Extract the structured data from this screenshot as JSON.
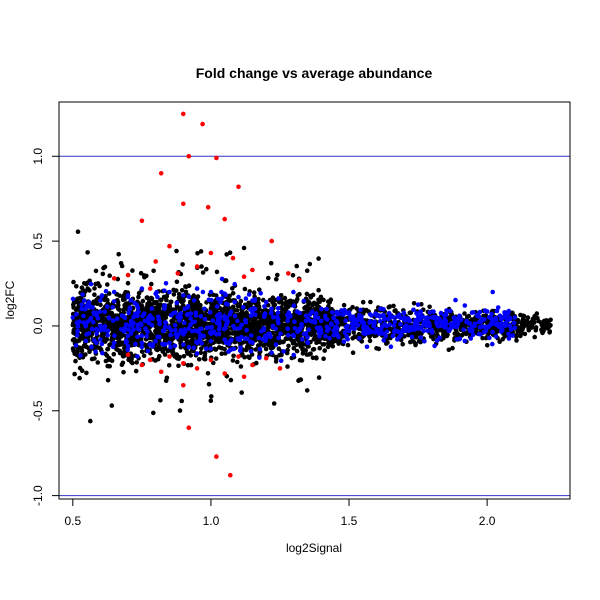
{
  "chart_data": {
    "type": "scatter",
    "title": "Fold change vs average abundance",
    "xlabel": "log2Signal",
    "ylabel": "log2FC",
    "xlim": [
      0.45,
      2.3
    ],
    "ylim": [
      -1.02,
      1.32
    ],
    "x_ticks": [
      0.5,
      1.0,
      1.5,
      2.0
    ],
    "x_tick_labels": [
      "0.5",
      "1.0",
      "1.5",
      "2.0"
    ],
    "y_ticks": [
      -1.0,
      -0.5,
      0.0,
      0.5,
      1.0
    ],
    "y_tick_labels": [
      "-1.0",
      "-0.5",
      "0.0",
      "0.5",
      "1.0"
    ],
    "grid": false,
    "reference_lines": [
      {
        "axis": "y",
        "value": 1.0,
        "color": "#3333cc"
      },
      {
        "axis": "y",
        "value": -1.0,
        "color": "#3333cc"
      }
    ],
    "colors": {
      "black": "#000000",
      "blue": "#0000ff",
      "red": "#ff0000"
    },
    "series": [
      {
        "color": "#ff0000",
        "points": [
          [
            0.9,
            1.25
          ],
          [
            0.97,
            1.19
          ],
          [
            0.92,
            1.0
          ],
          [
            1.02,
            0.99
          ],
          [
            0.82,
            0.9
          ],
          [
            1.1,
            0.82
          ],
          [
            0.9,
            0.72
          ],
          [
            0.99,
            0.7
          ],
          [
            1.05,
            0.63
          ],
          [
            0.75,
            0.62
          ],
          [
            1.22,
            0.5
          ],
          [
            0.85,
            0.47
          ],
          [
            1.0,
            0.43
          ],
          [
            1.08,
            0.4
          ],
          [
            0.8,
            0.38
          ],
          [
            0.95,
            0.35
          ],
          [
            1.15,
            0.33
          ],
          [
            1.28,
            0.31
          ],
          [
            0.7,
            0.3
          ],
          [
            0.88,
            0.31
          ],
          [
            0.78,
            0.22
          ],
          [
            1.12,
            0.29
          ],
          [
            0.65,
            0.28
          ],
          [
            1.32,
            0.27
          ],
          [
            0.7,
            -0.17
          ],
          [
            0.78,
            -0.2
          ],
          [
            0.85,
            -0.18
          ],
          [
            0.9,
            -0.22
          ],
          [
            0.95,
            -0.25
          ],
          [
            1.0,
            -0.2
          ],
          [
            1.05,
            -0.28
          ],
          [
            1.1,
            -0.18
          ],
          [
            1.15,
            -0.23
          ],
          [
            1.2,
            -0.19
          ],
          [
            0.82,
            -0.27
          ],
          [
            0.92,
            -0.6
          ],
          [
            1.02,
            -0.77
          ],
          [
            1.07,
            -0.88
          ],
          [
            0.9,
            -0.35
          ],
          [
            1.12,
            -0.3
          ],
          [
            1.25,
            -0.25
          ],
          [
            0.75,
            -0.23
          ]
        ]
      },
      {
        "color": "#0000ff",
        "points": [
          [
            0.5,
            0.05
          ],
          [
            0.55,
            0.12
          ],
          [
            0.6,
            0.15
          ],
          [
            0.65,
            0.2
          ],
          [
            0.7,
            0.18
          ],
          [
            0.75,
            0.22
          ],
          [
            0.8,
            0.19
          ],
          [
            0.85,
            0.2
          ],
          [
            0.9,
            0.18
          ],
          [
            0.95,
            0.22
          ],
          [
            1.0,
            0.2
          ],
          [
            1.05,
            0.19
          ],
          [
            1.1,
            0.17
          ],
          [
            1.15,
            0.15
          ],
          [
            1.2,
            0.14
          ],
          [
            1.3,
            0.12
          ],
          [
            1.4,
            0.1
          ],
          [
            1.5,
            0.08
          ],
          [
            1.6,
            0.06
          ],
          [
            1.7,
            0.05
          ],
          [
            1.8,
            0.05
          ],
          [
            1.9,
            0.06
          ],
          [
            1.95,
            0.08
          ],
          [
            2.02,
            0.2
          ],
          [
            2.1,
            0.05
          ],
          [
            0.55,
            -0.05
          ],
          [
            0.6,
            -0.08
          ],
          [
            0.65,
            -0.1
          ],
          [
            0.7,
            -0.12
          ],
          [
            0.75,
            -0.1
          ],
          [
            0.8,
            -0.09
          ],
          [
            0.85,
            -0.1
          ],
          [
            0.9,
            -0.11
          ],
          [
            0.95,
            -0.1
          ],
          [
            1.0,
            -0.09
          ],
          [
            1.05,
            -0.08
          ],
          [
            1.1,
            -0.08
          ],
          [
            1.2,
            -0.07
          ],
          [
            1.3,
            -0.06
          ],
          [
            1.4,
            -0.04
          ],
          [
            1.5,
            -0.03
          ],
          [
            1.6,
            -0.02
          ],
          [
            1.7,
            -0.01
          ],
          [
            2.05,
            -0.01
          ],
          [
            1.85,
            0.03
          ]
        ]
      }
    ]
  }
}
